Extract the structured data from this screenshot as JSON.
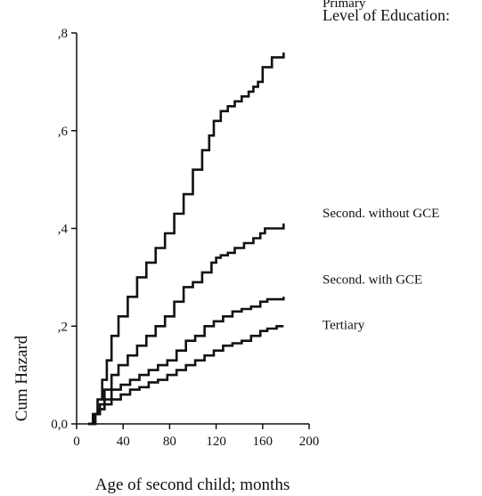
{
  "chart_data": {
    "type": "line",
    "title": "",
    "xlabel": "Age of second child; months",
    "ylabel": "Cum Hazard",
    "xlim": [
      0,
      200
    ],
    "ylim": [
      0,
      0.8
    ],
    "x_ticks": [
      "0",
      "40",
      "80",
      "120",
      "160",
      "200"
    ],
    "x_tick_values": [
      0,
      40,
      80,
      120,
      160,
      200
    ],
    "y_ticks": [
      "0,0",
      ",2",
      ",4",
      ",6",
      ",8"
    ],
    "y_tick_values": [
      0,
      0.2,
      0.4,
      0.6,
      0.8
    ],
    "grid": false,
    "legend_title": "Level of Education:",
    "line_color": "#111111",
    "series": [
      {
        "name": "Primary",
        "x": [
          10,
          14,
          18,
          22,
          26,
          30,
          36,
          44,
          52,
          60,
          68,
          76,
          84,
          92,
          100,
          108,
          114,
          118,
          124,
          130,
          136,
          142,
          148,
          152,
          156,
          160,
          168,
          176,
          178
        ],
        "y": [
          0,
          0.02,
          0.05,
          0.09,
          0.13,
          0.18,
          0.22,
          0.26,
          0.3,
          0.33,
          0.36,
          0.39,
          0.43,
          0.47,
          0.52,
          0.56,
          0.59,
          0.62,
          0.64,
          0.65,
          0.66,
          0.67,
          0.68,
          0.69,
          0.7,
          0.73,
          0.75,
          0.75,
          0.76
        ]
      },
      {
        "name": "Second. without GCE",
        "x": [
          10,
          16,
          20,
          24,
          30,
          36,
          44,
          52,
          60,
          68,
          76,
          84,
          92,
          100,
          108,
          116,
          120,
          124,
          130,
          136,
          144,
          152,
          158,
          162,
          170,
          178
        ],
        "y": [
          0,
          0.02,
          0.04,
          0.07,
          0.1,
          0.12,
          0.14,
          0.16,
          0.18,
          0.2,
          0.22,
          0.25,
          0.28,
          0.29,
          0.31,
          0.33,
          0.34,
          0.345,
          0.35,
          0.36,
          0.37,
          0.38,
          0.39,
          0.4,
          0.4,
          0.41
        ]
      },
      {
        "name": "Second. with GCE",
        "x": [
          10,
          16,
          20,
          24,
          30,
          38,
          46,
          54,
          62,
          70,
          78,
          86,
          94,
          102,
          110,
          118,
          126,
          134,
          142,
          150,
          158,
          164,
          170,
          178
        ],
        "y": [
          0,
          0.02,
          0.03,
          0.05,
          0.07,
          0.08,
          0.09,
          0.1,
          0.11,
          0.12,
          0.13,
          0.15,
          0.17,
          0.18,
          0.2,
          0.21,
          0.22,
          0.23,
          0.235,
          0.24,
          0.25,
          0.255,
          0.255,
          0.26
        ]
      },
      {
        "name": "Tertiary",
        "x": [
          10,
          16,
          20,
          24,
          30,
          38,
          46,
          54,
          62,
          70,
          78,
          86,
          94,
          102,
          110,
          118,
          126,
          134,
          142,
          150,
          158,
          164,
          172,
          178
        ],
        "y": [
          0,
          0.02,
          0.03,
          0.04,
          0.05,
          0.06,
          0.07,
          0.075,
          0.085,
          0.09,
          0.1,
          0.11,
          0.12,
          0.13,
          0.14,
          0.15,
          0.16,
          0.165,
          0.17,
          0.18,
          0.19,
          0.195,
          0.2,
          0.2
        ]
      }
    ]
  }
}
